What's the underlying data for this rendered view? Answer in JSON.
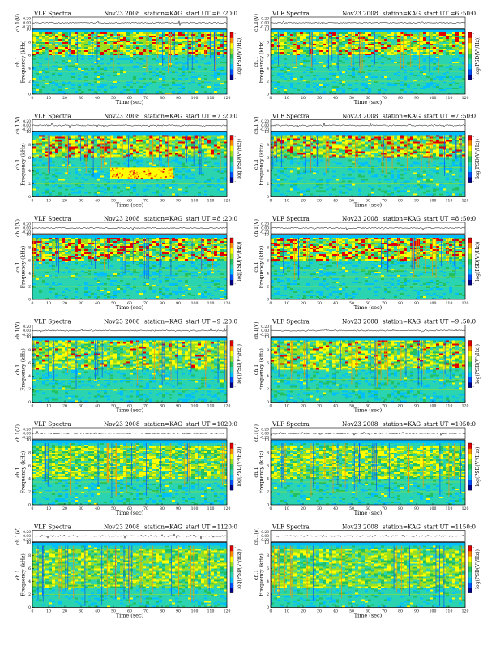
{
  "colors": {
    "background": "#2bd4b0",
    "scale": [
      "#00008b",
      "#0050ff",
      "#00bfff",
      "#2bd4b0",
      "#22c060",
      "#9be020",
      "#ffff00",
      "#ff8c00",
      "#e00000"
    ]
  },
  "chart_data": [
    {
      "type": "heatmap",
      "header": {
        "left": "VLF Spectra",
        "date": "Nov23 2008",
        "station": "station=KAG",
        "start": "start  UT =6 :20:0"
      },
      "top": {
        "ylabel": "ch.1(V)",
        "ticks": [
          "0.20",
          "0.00",
          "-0.20"
        ]
      },
      "ylabel": "ch.1\nFrequency (kHz)",
      "yticks": [
        "0",
        "2",
        "4",
        "6",
        "8",
        "10"
      ],
      "xticks": [
        "0",
        "10",
        "20",
        "30",
        "40",
        "50",
        "60",
        "70",
        "80",
        "90",
        "100",
        "110",
        "120"
      ],
      "xlabel": "Time (sec)",
      "colorbar_label": "log(PSD(V²/Hz))",
      "colorbar_ticks": [
        "-",
        "-"
      ],
      "xlim": [
        0,
        120
      ],
      "ylim": [
        0,
        10
      ],
      "band": [
        6,
        9.5
      ],
      "strength": 1.0,
      "event": null
    },
    {
      "type": "heatmap",
      "header": {
        "left": "VLF Spectra",
        "date": "Nov23 2008",
        "station": "station=KAG",
        "start": "start  UT =6 :50:0"
      },
      "top": {
        "ylabel": "ch.1(V)",
        "ticks": [
          "0.20",
          "0.00",
          "-0.20"
        ]
      },
      "ylabel": "ch.1\nFrequency (kHz)",
      "yticks": [
        "0",
        "2",
        "4",
        "6",
        "8",
        "10"
      ],
      "xticks": [
        "0",
        "10",
        "20",
        "30",
        "40",
        "50",
        "60",
        "70",
        "80",
        "90",
        "100",
        "110",
        "120"
      ],
      "xlabel": "Time (sec)",
      "colorbar_label": "log(PSD(V²/Hz))",
      "colorbar_ticks": [
        "-",
        "-"
      ],
      "xlim": [
        0,
        120
      ],
      "ylim": [
        0,
        10
      ],
      "band": [
        6,
        9.5
      ],
      "strength": 0.95,
      "event": null
    },
    {
      "type": "heatmap",
      "header": {
        "left": "VLF Spectra",
        "date": "Nov23 2008",
        "station": "station=KAG",
        "start": "start  UT =7 :20:0"
      },
      "top": {
        "ylabel": "ch.1(V)",
        "ticks": [
          "0.20",
          "0.00",
          "-0.20"
        ]
      },
      "ylabel": "ch.1\nFrequency (kHz)",
      "yticks": [
        "0",
        "2",
        "4",
        "6",
        "8",
        "10"
      ],
      "xticks": [
        "0",
        "10",
        "20",
        "30",
        "40",
        "50",
        "60",
        "70",
        "80",
        "90",
        "100",
        "110",
        "120"
      ],
      "xlabel": "Time (sec)",
      "colorbar_label": "log(PSD(V²/Hz))",
      "colorbar_ticks": [
        "-",
        "-"
      ],
      "xlim": [
        0,
        120
      ],
      "ylim": [
        0,
        10
      ],
      "band": [
        6,
        9.5
      ],
      "strength": 1.0,
      "event": {
        "x": [
          48,
          87
        ],
        "y": [
          2.8,
          4.5
        ]
      }
    },
    {
      "type": "heatmap",
      "header": {
        "left": "VLF Spectra",
        "date": "Nov23 2008",
        "station": "station=KAG",
        "start": "start  UT =7 :50:0"
      },
      "top": {
        "ylabel": "ch.1(V)",
        "ticks": [
          "0.20",
          "0.00",
          "-0.20"
        ]
      },
      "ylabel": "ch.1\nFrequency (kHz)",
      "yticks": [
        "0",
        "2",
        "4",
        "6",
        "8",
        "10"
      ],
      "xticks": [
        "0",
        "10",
        "20",
        "30",
        "40",
        "50",
        "60",
        "70",
        "80",
        "90",
        "100",
        "110",
        "120"
      ],
      "xlabel": "Time (sec)",
      "colorbar_label": "log(PSD(V²/Hz))",
      "colorbar_ticks": [
        "-",
        "-"
      ],
      "xlim": [
        0,
        120
      ],
      "ylim": [
        0,
        10
      ],
      "band": [
        6,
        9.5
      ],
      "strength": 1.0,
      "event": null
    },
    {
      "type": "heatmap",
      "header": {
        "left": "VLF Spectra",
        "date": "Nov23 2008",
        "station": "station=KAG",
        "start": "start  UT =8 :20:0"
      },
      "top": {
        "ylabel": "ch.1(V)",
        "ticks": [
          "0.20",
          "0.00",
          "-0.20"
        ]
      },
      "ylabel": "ch.1\nFrequency (kHz)",
      "yticks": [
        "0",
        "2",
        "4",
        "6",
        "8",
        "10"
      ],
      "xticks": [
        "0",
        "10",
        "20",
        "30",
        "40",
        "50",
        "60",
        "70",
        "80",
        "90",
        "100",
        "110",
        "120"
      ],
      "xlabel": "Time (sec)",
      "colorbar_label": "log(PSD(V²/Hz))",
      "colorbar_ticks": [
        "-",
        "-"
      ],
      "xlim": [
        0,
        120
      ],
      "ylim": [
        0,
        10
      ],
      "band": [
        6,
        9.5
      ],
      "strength": 1.05,
      "event": null
    },
    {
      "type": "heatmap",
      "header": {
        "left": "VLF Spectra",
        "date": "Nov23 2008",
        "station": "station=KAG",
        "start": "start  UT =8 :50:0"
      },
      "top": {
        "ylabel": "ch.1(V)",
        "ticks": [
          "0.20",
          "0.00",
          "-0.20"
        ]
      },
      "ylabel": "ch.1\nFrequency (kHz)",
      "yticks": [
        "0",
        "2",
        "4",
        "6",
        "8",
        "10"
      ],
      "xticks": [
        "0",
        "10",
        "20",
        "30",
        "40",
        "50",
        "60",
        "70",
        "80",
        "90",
        "100",
        "110",
        "120"
      ],
      "xlabel": "Time (sec)",
      "colorbar_label": "log(PSD(V²/Hz))",
      "colorbar_ticks": [
        "-",
        "-"
      ],
      "xlim": [
        0,
        120
      ],
      "ylim": [
        0,
        10
      ],
      "band": [
        6,
        9.5
      ],
      "strength": 1.05,
      "event": null
    },
    {
      "type": "heatmap",
      "header": {
        "left": "VLF Spectra",
        "date": "Nov23 2008",
        "station": "station=KAG",
        "start": "start  UT =9 :20:0"
      },
      "top": {
        "ylabel": "ch.1(V)",
        "ticks": [
          "0.20",
          "0.00",
          "-0.20"
        ]
      },
      "ylabel": "ch.1\nFrequency (kHz)",
      "yticks": [
        "0",
        "2",
        "4",
        "6",
        "8",
        "10"
      ],
      "xticks": [
        "0",
        "10",
        "20",
        "30",
        "40",
        "50",
        "60",
        "70",
        "80",
        "90",
        "100",
        "110",
        "120"
      ],
      "xlabel": "Time (sec)",
      "colorbar_label": "log(PSD(V²/Hz))",
      "colorbar_ticks": [
        "-",
        "-"
      ],
      "xlim": [
        0,
        120
      ],
      "ylim": [
        0,
        10
      ],
      "band": [
        5,
        9.5
      ],
      "strength": 0.9,
      "event": null
    },
    {
      "type": "heatmap",
      "header": {
        "left": "VLF Spectra",
        "date": "Nov23 2008",
        "station": "station=KAG",
        "start": "start  UT =9 :50:0"
      },
      "top": {
        "ylabel": "ch.1(V)",
        "ticks": [
          "0.20",
          "0.00",
          "-0.20"
        ]
      },
      "ylabel": "ch.1\nFrequency (kHz)",
      "yticks": [
        "0",
        "2",
        "4",
        "6",
        "8",
        "10"
      ],
      "xticks": [
        "0",
        "10",
        "20",
        "30",
        "40",
        "50",
        "60",
        "70",
        "80",
        "90",
        "100",
        "110",
        "120"
      ],
      "xlabel": "Time (sec)",
      "colorbar_label": "log(PSD(V²/Hz))",
      "colorbar_ticks": [
        "-",
        "-"
      ],
      "xlim": [
        0,
        120
      ],
      "ylim": [
        0,
        10
      ],
      "band": [
        5,
        9.5
      ],
      "strength": 0.9,
      "event": null
    },
    {
      "type": "heatmap",
      "header": {
        "left": "VLF Spectra",
        "date": "Nov23 2008",
        "station": "station=KAG",
        "start": "start  UT =1020:0"
      },
      "top": {
        "ylabel": "ch.1(V)",
        "ticks": [
          "0.20",
          "0.00",
          "-0.20"
        ]
      },
      "ylabel": "ch.1\nFrequency (kHz)",
      "yticks": [
        "0",
        "2",
        "4",
        "6",
        "8",
        "10"
      ],
      "xticks": [
        "0",
        "10",
        "20",
        "30",
        "40",
        "50",
        "60",
        "70",
        "80",
        "90",
        "100",
        "110",
        "120"
      ],
      "xlabel": "Time (sec)",
      "colorbar_label": "log(PSD(V²/Hz))",
      "colorbar_ticks": [
        "-",
        "-"
      ],
      "xlim": [
        0,
        120
      ],
      "ylim": [
        0,
        10
      ],
      "band": [
        4,
        9
      ],
      "strength": 0.8,
      "event": null
    },
    {
      "type": "heatmap",
      "header": {
        "left": "VLF Spectra",
        "date": "Nov23 2008",
        "station": "station=KAG",
        "start": "start  UT =1050:0"
      },
      "top": {
        "ylabel": "ch.1(V)",
        "ticks": [
          "0.20",
          "0.00",
          "-0.20"
        ]
      },
      "ylabel": "ch.1\nFrequency (kHz)",
      "yticks": [
        "0",
        "2",
        "4",
        "6",
        "8",
        "10"
      ],
      "xticks": [
        "0",
        "10",
        "20",
        "30",
        "40",
        "50",
        "60",
        "70",
        "80",
        "90",
        "100",
        "110",
        "120"
      ],
      "xlabel": "Time (sec)",
      "colorbar_label": "log(PSD(V²/Hz))",
      "colorbar_ticks": [
        "-",
        "-"
      ],
      "xlim": [
        0,
        120
      ],
      "ylim": [
        0,
        10
      ],
      "band": [
        4,
        9
      ],
      "strength": 0.8,
      "event": null
    },
    {
      "type": "heatmap",
      "header": {
        "left": "VLF Spectra",
        "date": "Nov23 2008",
        "station": "station=KAG",
        "start": "start  UT =1120:0"
      },
      "top": {
        "ylabel": "ch.1(V)",
        "ticks": [
          "0.20",
          "0.00",
          "-0.20"
        ]
      },
      "ylabel": "ch.1\nFrequency (kHz)",
      "yticks": [
        "0",
        "2",
        "4",
        "6",
        "8",
        "10"
      ],
      "xticks": [
        "0",
        "10",
        "20",
        "30",
        "40",
        "50",
        "60",
        "70",
        "80",
        "90",
        "100",
        "110",
        "120"
      ],
      "xlabel": "Time (sec)",
      "colorbar_label": "log(PSD(V²/Hz))",
      "colorbar_ticks": [
        "-",
        "-"
      ],
      "xlim": [
        0,
        120
      ],
      "ylim": [
        0,
        10
      ],
      "band": [
        3,
        9
      ],
      "strength": 0.75,
      "event": null
    },
    {
      "type": "heatmap",
      "header": {
        "left": "VLF Spectra",
        "date": "Nov23 2008",
        "station": "station=KAG",
        "start": "start  UT =1150:0"
      },
      "top": {
        "ylabel": "ch.1(V)",
        "ticks": [
          "0.20",
          "0.00",
          "-0.20"
        ]
      },
      "ylabel": "ch.1\nFrequency (kHz)",
      "yticks": [
        "0",
        "2",
        "4",
        "6",
        "8",
        "10"
      ],
      "xticks": [
        "0",
        "10",
        "20",
        "30",
        "40",
        "50",
        "60",
        "70",
        "80",
        "90",
        "100",
        "110",
        "120"
      ],
      "xlabel": "Time (sec)",
      "colorbar_label": "log(PSD(V²/Hz))",
      "colorbar_ticks": [
        "-",
        "-"
      ],
      "xlim": [
        0,
        120
      ],
      "ylim": [
        0,
        10
      ],
      "band": [
        3,
        9
      ],
      "strength": 0.75,
      "event": null
    }
  ]
}
